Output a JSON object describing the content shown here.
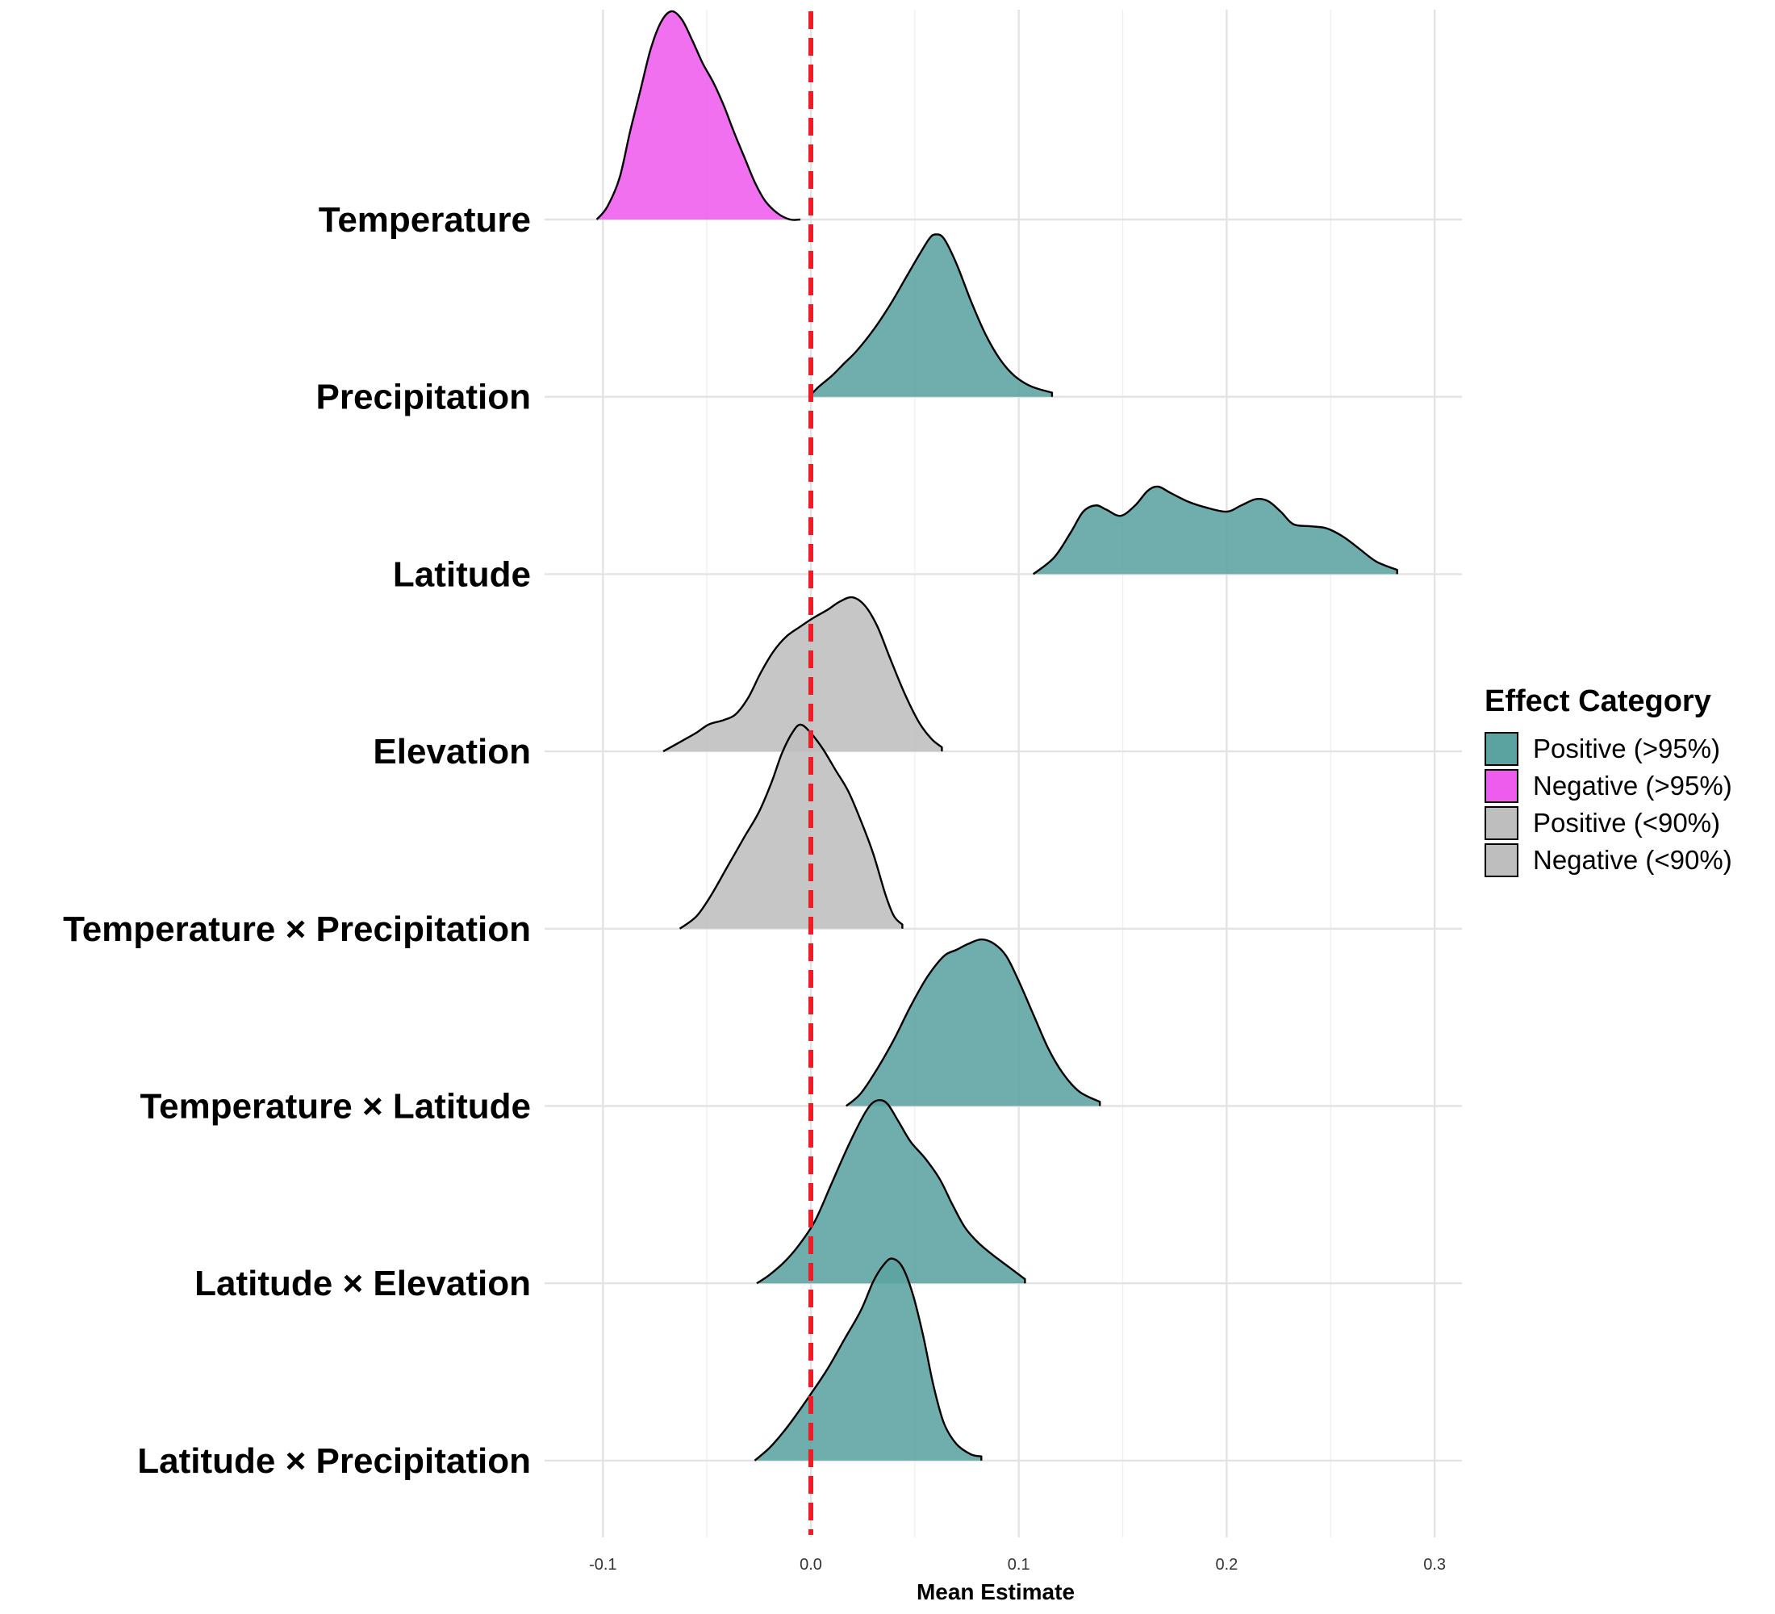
{
  "chart_data": {
    "type": "ridgeline",
    "title": "",
    "xlabel": "Mean Estimate",
    "ylabel": "",
    "xlim": [
      -0.12,
      0.31
    ],
    "x_ticks": [
      -0.1,
      0.0,
      0.1,
      0.2,
      0.3
    ],
    "x_tick_labels": [
      "-0.1",
      "0.0",
      "0.1",
      "0.2",
      "0.3"
    ],
    "grid": true,
    "reference_line": {
      "x": 0.0,
      "color": "#EE1C25",
      "style": "dashed"
    },
    "legend": {
      "title": "Effect Category",
      "position": "right",
      "entries": [
        {
          "label": "Positive (>95%)",
          "color": "#5BA3A0"
        },
        {
          "label": "Negative (>95%)",
          "color": "#EE5CEE"
        },
        {
          "label": "Positive (<90%)",
          "color": "#BEBEBE"
        },
        {
          "label": "Negative (<90%)",
          "color": "#BEBEBE"
        }
      ]
    },
    "series": [
      {
        "name": "Temperature",
        "category": "Negative (>95%)",
        "color": "#EE5CEE",
        "density": [
          [
            -0.103,
            0.0
          ],
          [
            -0.098,
            0.06
          ],
          [
            -0.092,
            0.2
          ],
          [
            -0.087,
            0.42
          ],
          [
            -0.082,
            0.62
          ],
          [
            -0.077,
            0.82
          ],
          [
            -0.072,
            0.95
          ],
          [
            -0.067,
            1.0
          ],
          [
            -0.062,
            0.96
          ],
          [
            -0.057,
            0.86
          ],
          [
            -0.052,
            0.75
          ],
          [
            -0.047,
            0.66
          ],
          [
            -0.042,
            0.55
          ],
          [
            -0.037,
            0.42
          ],
          [
            -0.032,
            0.3
          ],
          [
            -0.027,
            0.18
          ],
          [
            -0.022,
            0.09
          ],
          [
            -0.016,
            0.03
          ],
          [
            -0.01,
            0.0
          ],
          [
            -0.005,
            0.0
          ]
        ]
      },
      {
        "name": "Precipitation",
        "category": "Positive (>95%)",
        "color": "#5BA3A0",
        "density": [
          [
            -0.001,
            0.0
          ],
          [
            0.004,
            0.05
          ],
          [
            0.01,
            0.1
          ],
          [
            0.016,
            0.16
          ],
          [
            0.022,
            0.22
          ],
          [
            0.03,
            0.32
          ],
          [
            0.038,
            0.44
          ],
          [
            0.045,
            0.56
          ],
          [
            0.052,
            0.68
          ],
          [
            0.057,
            0.76
          ],
          [
            0.06,
            0.78
          ],
          [
            0.064,
            0.76
          ],
          [
            0.07,
            0.64
          ],
          [
            0.077,
            0.46
          ],
          [
            0.084,
            0.3
          ],
          [
            0.091,
            0.18
          ],
          [
            0.098,
            0.1
          ],
          [
            0.106,
            0.05
          ],
          [
            0.116,
            0.02
          ]
        ]
      },
      {
        "name": "Latitude",
        "category": "Positive (>95%)",
        "color": "#5BA3A0",
        "density": [
          [
            0.107,
            0.0
          ],
          [
            0.117,
            0.08
          ],
          [
            0.125,
            0.2
          ],
          [
            0.131,
            0.3
          ],
          [
            0.137,
            0.33
          ],
          [
            0.142,
            0.31
          ],
          [
            0.149,
            0.28
          ],
          [
            0.156,
            0.33
          ],
          [
            0.162,
            0.4
          ],
          [
            0.167,
            0.42
          ],
          [
            0.173,
            0.39
          ],
          [
            0.181,
            0.35
          ],
          [
            0.19,
            0.32
          ],
          [
            0.2,
            0.3
          ],
          [
            0.207,
            0.33
          ],
          [
            0.214,
            0.36
          ],
          [
            0.22,
            0.35
          ],
          [
            0.226,
            0.3
          ],
          [
            0.232,
            0.24
          ],
          [
            0.24,
            0.23
          ],
          [
            0.248,
            0.22
          ],
          [
            0.256,
            0.18
          ],
          [
            0.264,
            0.12
          ],
          [
            0.272,
            0.06
          ],
          [
            0.282,
            0.02
          ]
        ]
      },
      {
        "name": "Elevation",
        "category": "Positive (<90%)",
        "color": "#BEBEBE",
        "density": [
          [
            -0.071,
            0.0
          ],
          [
            -0.062,
            0.05
          ],
          [
            -0.055,
            0.09
          ],
          [
            -0.049,
            0.13
          ],
          [
            -0.042,
            0.15
          ],
          [
            -0.036,
            0.18
          ],
          [
            -0.03,
            0.26
          ],
          [
            -0.024,
            0.38
          ],
          [
            -0.018,
            0.48
          ],
          [
            -0.012,
            0.55
          ],
          [
            -0.005,
            0.6
          ],
          [
            0.001,
            0.64
          ],
          [
            0.008,
            0.68
          ],
          [
            0.014,
            0.72
          ],
          [
            0.02,
            0.74
          ],
          [
            0.026,
            0.7
          ],
          [
            0.032,
            0.6
          ],
          [
            0.038,
            0.45
          ],
          [
            0.045,
            0.28
          ],
          [
            0.052,
            0.14
          ],
          [
            0.058,
            0.06
          ],
          [
            0.063,
            0.02
          ]
        ]
      },
      {
        "name": "Temperature × Precipitation",
        "category": "Negative (<90%)",
        "color": "#BEBEBE",
        "density": [
          [
            -0.063,
            0.0
          ],
          [
            -0.055,
            0.06
          ],
          [
            -0.048,
            0.16
          ],
          [
            -0.04,
            0.3
          ],
          [
            -0.032,
            0.44
          ],
          [
            -0.025,
            0.56
          ],
          [
            -0.019,
            0.7
          ],
          [
            -0.014,
            0.84
          ],
          [
            -0.009,
            0.94
          ],
          [
            -0.005,
            0.98
          ],
          [
            0.0,
            0.94
          ],
          [
            0.006,
            0.86
          ],
          [
            0.012,
            0.76
          ],
          [
            0.018,
            0.66
          ],
          [
            0.024,
            0.52
          ],
          [
            0.03,
            0.36
          ],
          [
            0.036,
            0.16
          ],
          [
            0.04,
            0.06
          ],
          [
            0.044,
            0.02
          ]
        ]
      },
      {
        "name": "Temperature × Latitude",
        "category": "Positive (>95%)",
        "color": "#5BA3A0",
        "density": [
          [
            0.017,
            0.0
          ],
          [
            0.024,
            0.06
          ],
          [
            0.032,
            0.18
          ],
          [
            0.04,
            0.32
          ],
          [
            0.048,
            0.48
          ],
          [
            0.056,
            0.62
          ],
          [
            0.064,
            0.72
          ],
          [
            0.07,
            0.75
          ],
          [
            0.076,
            0.78
          ],
          [
            0.082,
            0.8
          ],
          [
            0.088,
            0.78
          ],
          [
            0.094,
            0.72
          ],
          [
            0.1,
            0.6
          ],
          [
            0.107,
            0.44
          ],
          [
            0.114,
            0.28
          ],
          [
            0.121,
            0.16
          ],
          [
            0.129,
            0.07
          ],
          [
            0.139,
            0.02
          ]
        ]
      },
      {
        "name": "Latitude × Elevation",
        "category": "Positive (>95%)",
        "color": "#5BA3A0",
        "density": [
          [
            -0.026,
            0.0
          ],
          [
            -0.02,
            0.04
          ],
          [
            -0.013,
            0.1
          ],
          [
            -0.006,
            0.18
          ],
          [
            0.002,
            0.3
          ],
          [
            0.01,
            0.48
          ],
          [
            0.018,
            0.66
          ],
          [
            0.025,
            0.8
          ],
          [
            0.029,
            0.86
          ],
          [
            0.033,
            0.88
          ],
          [
            0.037,
            0.86
          ],
          [
            0.042,
            0.78
          ],
          [
            0.048,
            0.68
          ],
          [
            0.055,
            0.6
          ],
          [
            0.062,
            0.5
          ],
          [
            0.068,
            0.38
          ],
          [
            0.074,
            0.27
          ],
          [
            0.08,
            0.2
          ],
          [
            0.087,
            0.14
          ],
          [
            0.095,
            0.08
          ],
          [
            0.103,
            0.02
          ]
        ]
      },
      {
        "name": "Latitude × Precipitation",
        "category": "Positive (>95%)",
        "color": "#5BA3A0",
        "density": [
          [
            -0.027,
            0.0
          ],
          [
            -0.02,
            0.06
          ],
          [
            -0.013,
            0.14
          ],
          [
            -0.007,
            0.22
          ],
          [
            0.0,
            0.32
          ],
          [
            0.008,
            0.44
          ],
          [
            0.016,
            0.58
          ],
          [
            0.024,
            0.72
          ],
          [
            0.03,
            0.86
          ],
          [
            0.035,
            0.94
          ],
          [
            0.039,
            0.97
          ],
          [
            0.044,
            0.93
          ],
          [
            0.049,
            0.8
          ],
          [
            0.054,
            0.6
          ],
          [
            0.059,
            0.36
          ],
          [
            0.064,
            0.18
          ],
          [
            0.07,
            0.08
          ],
          [
            0.077,
            0.03
          ],
          [
            0.082,
            0.02
          ]
        ]
      }
    ]
  }
}
